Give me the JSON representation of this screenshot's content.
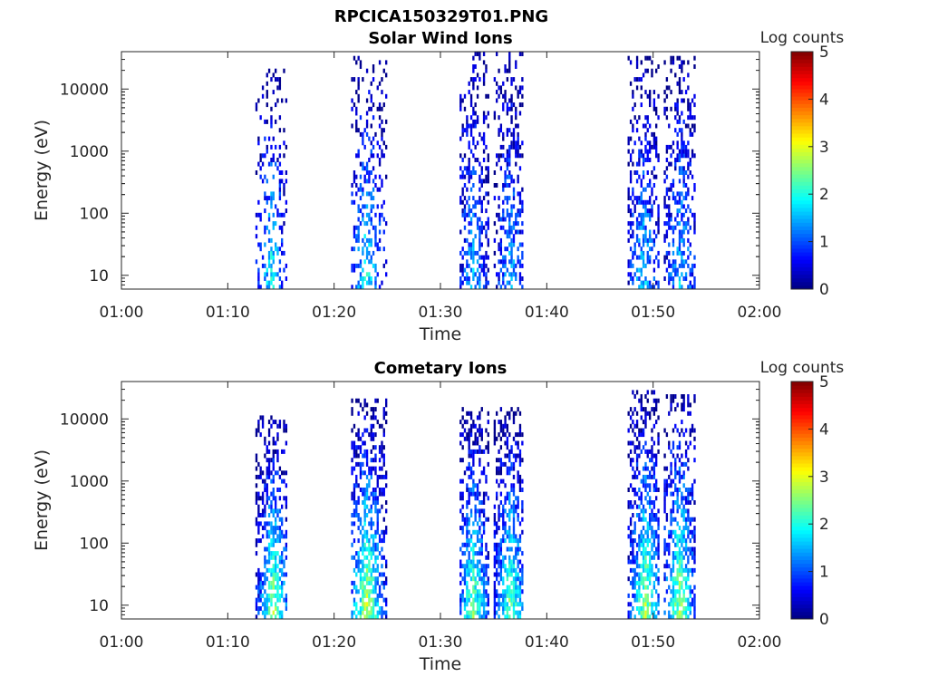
{
  "figure_title": "RPCICA150329T01.PNG",
  "chart_data": [
    {
      "type": "heatmap",
      "title": "Solar Wind Ions",
      "xlabel": "Time",
      "ylabel": "Energy (eV)",
      "x_ticks": [
        "01:00",
        "01:10",
        "01:20",
        "01:30",
        "01:40",
        "01:50",
        "02:00"
      ],
      "x_range_minutes": [
        0,
        60
      ],
      "y_scale": "log",
      "y_range": [
        6,
        40000
      ],
      "y_ticks": [
        "10",
        "100",
        "1000",
        "10000"
      ],
      "y_tick_values": [
        10,
        100,
        1000,
        10000
      ],
      "colorbar": {
        "label": "Log counts",
        "range": [
          0,
          5
        ],
        "ticks": [
          "0",
          "1",
          "2",
          "3",
          "4",
          "5"
        ],
        "colormap": "jet"
      },
      "bursts": [
        {
          "start_min": 12.6,
          "end_min": 15.4,
          "peak_min": 14.0,
          "emax": 20000,
          "peak": 2.0,
          "density": 0.45
        },
        {
          "start_min": 21.6,
          "end_min": 24.9,
          "peak_min": 23.0,
          "emax": 33000,
          "peak": 2.0,
          "density": 0.45
        },
        {
          "start_min": 31.8,
          "end_min": 34.6,
          "peak_min": 33.0,
          "emax": 40000,
          "peak": 1.6,
          "density": 0.6
        },
        {
          "start_min": 35.0,
          "end_min": 37.8,
          "peak_min": 36.5,
          "emax": 40000,
          "peak": 1.6,
          "density": 0.6
        },
        {
          "start_min": 47.6,
          "end_min": 50.6,
          "peak_min": 49.0,
          "emax": 35000,
          "peak": 1.7,
          "density": 0.6
        },
        {
          "start_min": 51.0,
          "end_min": 54.0,
          "peak_min": 52.5,
          "emax": 35000,
          "peak": 1.7,
          "density": 0.6
        }
      ]
    },
    {
      "type": "heatmap",
      "title": "Cometary Ions",
      "xlabel": "Time",
      "ylabel": "Energy (eV)",
      "x_ticks": [
        "01:00",
        "01:10",
        "01:20",
        "01:30",
        "01:40",
        "01:50",
        "02:00"
      ],
      "x_range_minutes": [
        0,
        60
      ],
      "y_scale": "log",
      "y_range": [
        6,
        40000
      ],
      "y_ticks": [
        "10",
        "100",
        "1000",
        "10000"
      ],
      "y_tick_values": [
        10,
        100,
        1000,
        10000
      ],
      "colorbar": {
        "label": "Log counts",
        "range": [
          0,
          5
        ],
        "ticks": [
          "0",
          "1",
          "2",
          "3",
          "4",
          "5"
        ],
        "colormap": "jet"
      },
      "bursts": [
        {
          "start_min": 12.6,
          "end_min": 15.4,
          "peak_min": 14.2,
          "emax": 11000,
          "peak": 2.8,
          "density": 0.8
        },
        {
          "start_min": 21.6,
          "end_min": 24.9,
          "peak_min": 23.0,
          "emax": 22000,
          "peak": 2.9,
          "density": 0.8
        },
        {
          "start_min": 31.8,
          "end_min": 34.6,
          "peak_min": 33.0,
          "emax": 15000,
          "peak": 2.6,
          "density": 0.85
        },
        {
          "start_min": 35.0,
          "end_min": 37.8,
          "peak_min": 36.5,
          "emax": 15000,
          "peak": 2.6,
          "density": 0.85
        },
        {
          "start_min": 47.6,
          "end_min": 50.6,
          "peak_min": 49.2,
          "emax": 28000,
          "peak": 2.8,
          "density": 0.8
        },
        {
          "start_min": 51.0,
          "end_min": 54.0,
          "peak_min": 52.4,
          "emax": 26000,
          "peak": 2.8,
          "density": 0.8
        }
      ]
    }
  ]
}
